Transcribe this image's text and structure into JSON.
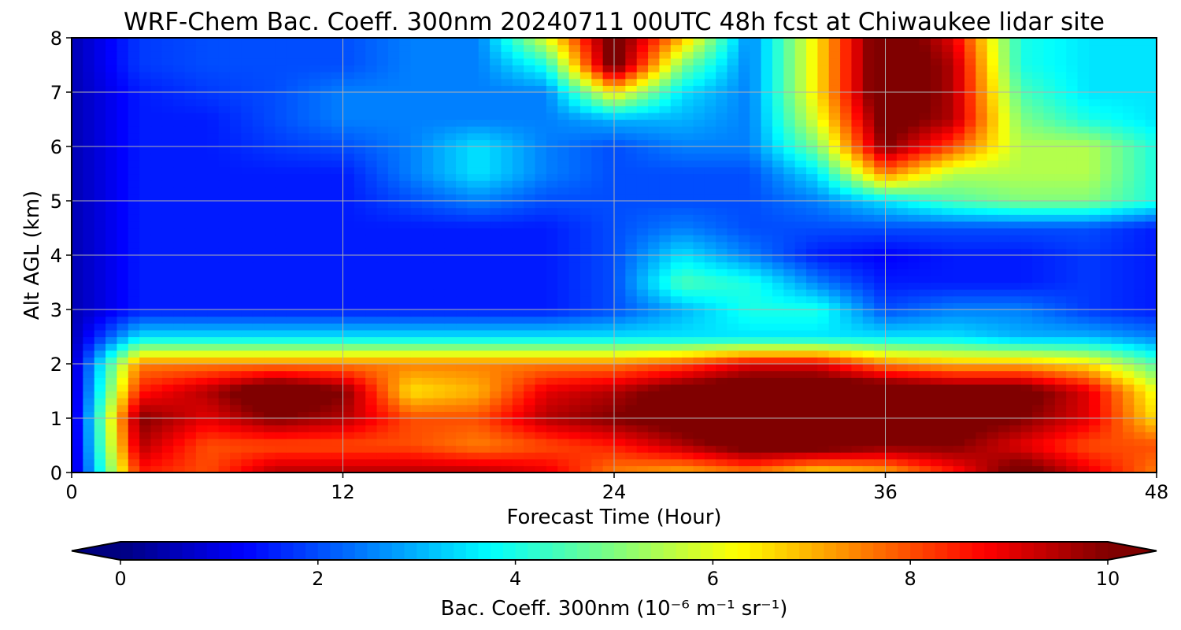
{
  "chart_data": {
    "type": "heatmap",
    "title": "WRF-Chem Bac. Coeff. 300nm  20240711 00UTC 48h fcst at Chiwaukee lidar site",
    "xlabel": "Forecast Time (Hour)",
    "ylabel": "Alt AGL (km)",
    "xlim": [
      0,
      48
    ],
    "ylim": [
      0,
      8
    ],
    "x_ticks": [
      "0",
      "12",
      "24",
      "36",
      "48"
    ],
    "y_ticks": [
      "0",
      "1",
      "2",
      "3",
      "4",
      "5",
      "6",
      "7",
      "8"
    ],
    "grid": true,
    "colorscale": "jet",
    "value_range": [
      0,
      10
    ],
    "colorbar_ticks": [
      "0",
      "2",
      "4",
      "6",
      "8",
      "10"
    ],
    "colorbar_label": "Bac. Coeff. 300nm  (10⁻⁶ m⁻¹ sr⁻¹)",
    "colorbar_extend": "both",
    "x": [
      0,
      3,
      6,
      9,
      12,
      15,
      18,
      21,
      24,
      27,
      30,
      33,
      36,
      39,
      42,
      45,
      48
    ],
    "y": [
      0,
      0.5,
      1,
      1.5,
      2,
      2.5,
      3,
      3.5,
      4,
      4.5,
      5,
      5.5,
      6,
      6.5,
      7,
      7.5,
      8
    ],
    "z": [
      [
        0.5,
        8.5,
        8.0,
        9.5,
        9.5,
        9.5,
        9.5,
        9.0,
        7.5,
        7.0,
        7.5,
        6.5,
        7.0,
        8.5,
        10.5,
        9.0,
        7.5
      ],
      [
        0.5,
        9.5,
        8.0,
        8.0,
        8.0,
        8.0,
        7.5,
        8.0,
        8.5,
        9.5,
        10.5,
        10.5,
        10.0,
        10.0,
        9.0,
        8.0,
        8.0
      ],
      [
        0.5,
        10.0,
        9.0,
        10.0,
        9.5,
        8.0,
        8.0,
        9.5,
        10.0,
        10.5,
        11.0,
        11.0,
        10.5,
        10.5,
        10.0,
        9.0,
        6.5
      ],
      [
        0.5,
        8.5,
        9.5,
        11.0,
        10.0,
        6.5,
        7.0,
        9.0,
        9.5,
        10.5,
        11.0,
        11.0,
        11.0,
        10.5,
        10.5,
        9.0,
        6.0
      ],
      [
        0.5,
        7.5,
        7.5,
        7.5,
        7.5,
        7.5,
        7.5,
        7.5,
        7.5,
        8.0,
        9.0,
        9.0,
        7.5,
        7.0,
        7.0,
        6.5,
        4.5
      ],
      [
        0.5,
        3.5,
        3.5,
        3.5,
        3.5,
        3.5,
        3.5,
        3.5,
        3.5,
        3.5,
        3.5,
        3.5,
        3.5,
        3.5,
        3.0,
        3.0,
        2.5
      ],
      [
        0.5,
        1.5,
        1.5,
        1.5,
        1.5,
        1.5,
        1.5,
        1.5,
        2.0,
        3.0,
        4.0,
        4.0,
        2.0,
        2.5,
        2.5,
        1.8,
        1.5
      ],
      [
        0.5,
        1.5,
        1.5,
        1.5,
        1.5,
        1.5,
        1.5,
        1.5,
        2.0,
        4.5,
        4.0,
        2.5,
        1.5,
        1.5,
        1.5,
        1.8,
        1.5
      ],
      [
        0.5,
        1.5,
        1.5,
        1.5,
        1.5,
        1.5,
        1.5,
        1.5,
        2.0,
        3.5,
        2.5,
        1.5,
        1.2,
        1.5,
        1.5,
        1.8,
        1.5
      ],
      [
        0.5,
        1.5,
        1.5,
        1.5,
        1.5,
        1.5,
        1.5,
        1.5,
        2.0,
        2.5,
        2.0,
        2.0,
        2.0,
        2.0,
        2.0,
        2.0,
        1.5
      ],
      [
        0.5,
        1.5,
        1.5,
        1.5,
        1.5,
        2.0,
        2.5,
        2.0,
        2.0,
        2.0,
        2.0,
        2.5,
        3.5,
        4.5,
        5.0,
        5.0,
        4.0
      ],
      [
        0.5,
        1.5,
        1.5,
        1.5,
        1.5,
        2.5,
        3.5,
        2.5,
        2.0,
        2.0,
        2.0,
        3.5,
        7.5,
        5.5,
        5.5,
        5.5,
        4.0
      ],
      [
        0.5,
        1.5,
        1.5,
        1.8,
        2.0,
        2.5,
        3.5,
        2.5,
        2.0,
        2.5,
        2.5,
        5.0,
        10.0,
        8.0,
        5.5,
        5.5,
        4.0
      ],
      [
        0.5,
        1.5,
        1.5,
        2.0,
        2.5,
        2.5,
        2.5,
        2.5,
        3.0,
        3.0,
        2.5,
        6.0,
        10.5,
        9.5,
        5.0,
        4.0,
        3.5
      ],
      [
        0.5,
        1.5,
        1.8,
        2.0,
        2.5,
        2.5,
        2.5,
        2.5,
        6.5,
        3.5,
        2.5,
        6.5,
        11.0,
        9.5,
        4.5,
        3.5,
        3.5
      ],
      [
        0.5,
        1.8,
        2.0,
        2.0,
        2.0,
        2.5,
        2.5,
        4.0,
        10.5,
        5.0,
        2.5,
        6.5,
        11.0,
        9.5,
        4.0,
        3.5,
        3.5
      ],
      [
        0.5,
        1.8,
        2.0,
        2.0,
        2.0,
        2.5,
        2.5,
        6.0,
        10.5,
        7.0,
        2.5,
        6.5,
        11.0,
        9.0,
        4.0,
        3.5,
        3.5
      ]
    ]
  }
}
